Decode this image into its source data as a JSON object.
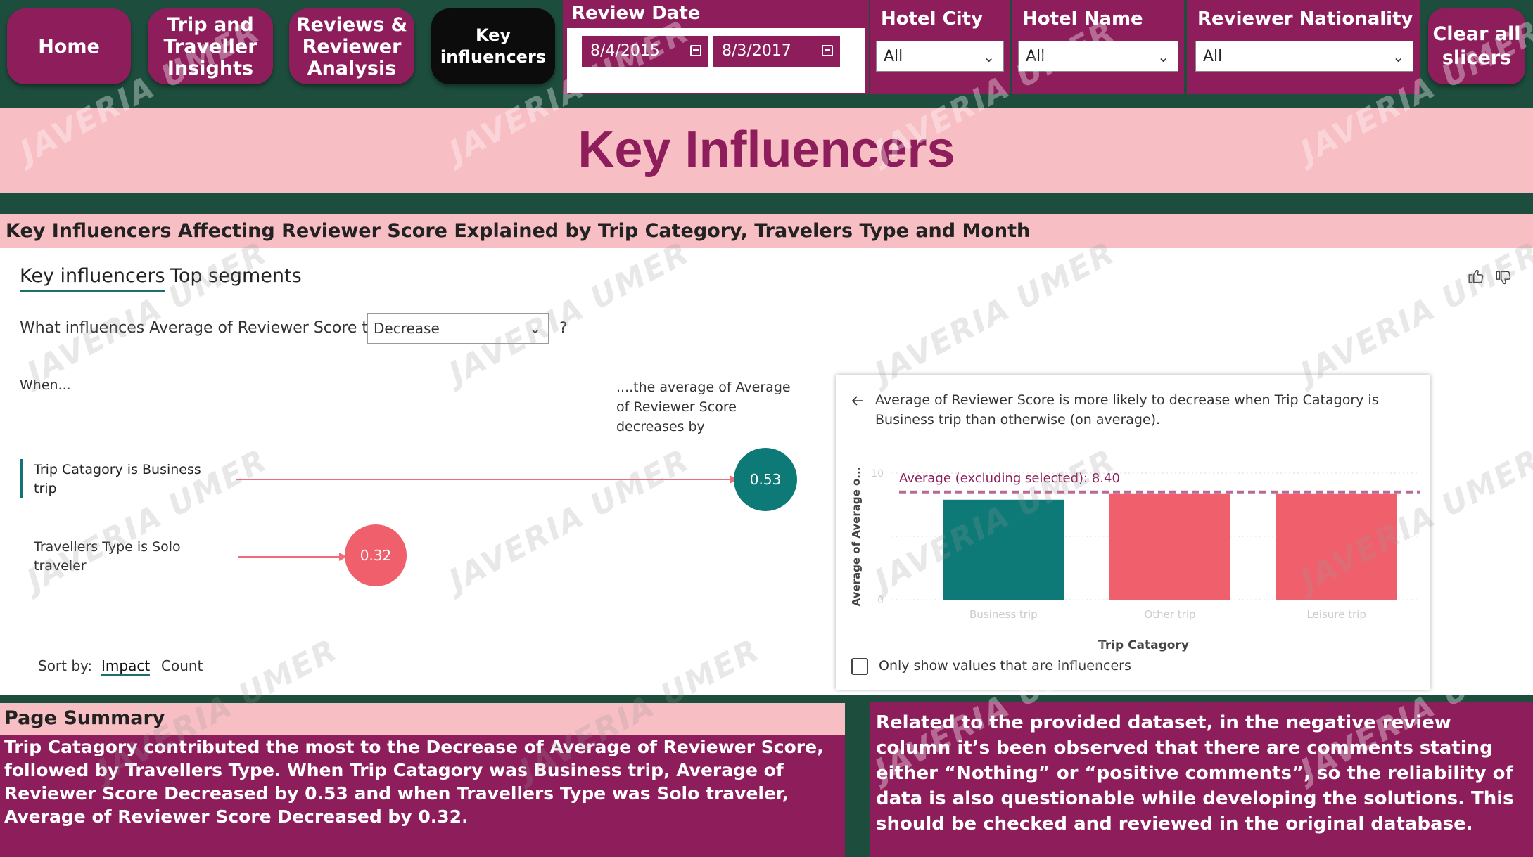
{
  "nav": {
    "home": "Home",
    "trip": "Trip and\nTraveller\nInsights",
    "reviews": "Reviews &\nReviewer\nAnalysis",
    "key": "Key\ninfluencers",
    "clear": "Clear all\nslicers"
  },
  "slicers": {
    "review_date": {
      "title": "Review Date",
      "start": "8/4/2015",
      "end": "8/3/2017"
    },
    "hotel_city": {
      "title": "Hotel City",
      "value": "All"
    },
    "hotel_name": {
      "title": "Hotel Name",
      "value": "All"
    },
    "reviewer_nationality": {
      "title": "Reviewer Nationality",
      "value": "All"
    }
  },
  "page_title": "Key Influencers",
  "visual": {
    "title": "Key Influencers Affecting Reviewer Score Explained by Trip Category, Travelers Type and Month",
    "tabs": [
      "Key influencers",
      "Top segments"
    ],
    "question_prefix": "What influences Average of Reviewer Score to",
    "question_value": "Decrease",
    "question_suffix": "?",
    "when_label": "When...",
    "result_label": "....the average of Average of Reviewer Score decreases by",
    "influencers": [
      {
        "label": "Trip Catagory is Business trip",
        "value": "0.53"
      },
      {
        "label": "Travellers Type is Solo traveler",
        "value": "0.32"
      }
    ],
    "sort_by": "Sort by:",
    "sort_impact": "Impact",
    "sort_count": "Count"
  },
  "detail": {
    "text": "Average of Reviewer Score is more likely to decrease when Trip Catagory is Business trip than otherwise (on average).",
    "avg_label": "Average (excluding selected): 8.40",
    "ylabel": "Average of Average o...",
    "xlabel": "Trip Catagory",
    "checkbox_label": "Only show values that are influencers"
  },
  "chart_data": {
    "type": "bar",
    "categories": [
      "Business trip",
      "Other trip",
      "Leisure trip"
    ],
    "values": [
      7.9,
      8.4,
      8.4
    ],
    "reference_line": 8.4,
    "colors": [
      "#0e7a77",
      "#f0606c",
      "#f0606c"
    ],
    "ylim": [
      0,
      10
    ],
    "xlabel": "Trip Catagory",
    "ylabel": "Average of Average o...",
    "y_ticks": [
      "0",
      "10"
    ]
  },
  "summary": {
    "title": "Page Summary",
    "text": "Trip Catagory contributed the most to the Decrease of Average of Reviewer Score, followed by Travellers Type. When Trip Catagory was Business trip, Average of Reviewer Score Decreased by 0.53 and when Travellers Type was Solo traveler, Average of Reviewer Score Decreased by 0.32.",
    "note": "Related to the provided dataset, in the negative review column it’s been observed that there are comments stating either “Nothing” or “positive comments”, so the reliability of data is also questionable while developing the solutions. This should be checked and reviewed in the original database."
  },
  "watermark": "JAVERIA UMER",
  "colors": {
    "brand": "#8e1d5b",
    "pink": "#f7bec3",
    "teal": "#0e7a77",
    "coral": "#f0606c",
    "background": "#1d4d3c"
  }
}
